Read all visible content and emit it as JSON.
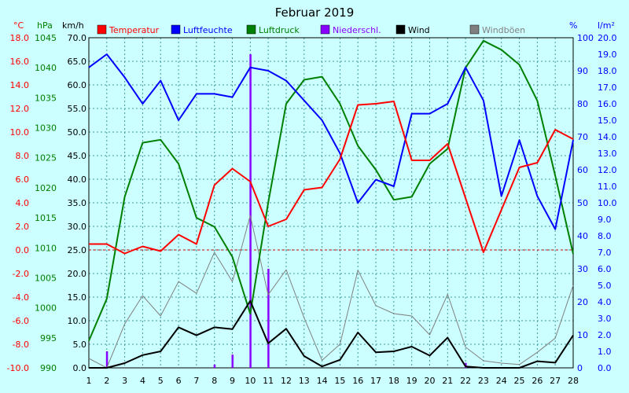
{
  "chart_data": {
    "type": "line",
    "title": "Februar 2019",
    "x": [
      1,
      2,
      3,
      4,
      5,
      6,
      7,
      8,
      9,
      10,
      11,
      12,
      13,
      14,
      15,
      16,
      17,
      18,
      19,
      20,
      21,
      22,
      23,
      24,
      25,
      26,
      27,
      28
    ],
    "axes": {
      "temp": {
        "unit": "°C",
        "min": -10,
        "max": 18,
        "step": 2,
        "color": "#ff0000",
        "ticks": [
          "-10.0",
          "-8.0",
          "-6.0",
          "-4.0",
          "-2.0",
          "0.0",
          "2.0",
          "4.0",
          "6.0",
          "8.0",
          "10.0",
          "12.0",
          "14.0",
          "16.0",
          "18.0"
        ]
      },
      "press": {
        "unit": "hPa",
        "min": 990,
        "max": 1045,
        "step": 5,
        "color": "#008000",
        "ticks": [
          "990",
          "995",
          "1000",
          "1005",
          "1010",
          "1015",
          "1020",
          "1025",
          "1030",
          "1035",
          "1040",
          "1045"
        ]
      },
      "wind": {
        "unit": "km/h",
        "min": 0,
        "max": 70,
        "step": 5,
        "color": "#000000",
        "ticks": [
          "0.0",
          "5.0",
          "10.0",
          "15.0",
          "20.0",
          "25.0",
          "30.0",
          "35.0",
          "40.0",
          "45.0",
          "50.0",
          "55.0",
          "60.0",
          "65.0",
          "70.0"
        ]
      },
      "hum": {
        "unit": "%",
        "min": 0,
        "max": 100,
        "step": 10,
        "color": "#0000ff",
        "ticks": [
          "0",
          "10",
          "20",
          "30",
          "40",
          "50",
          "60",
          "70",
          "80",
          "90",
          "100"
        ]
      },
      "rain": {
        "unit": "l/m²",
        "min": 0,
        "max": 20,
        "step": 1,
        "color": "#0000ff",
        "ticks": [
          "0.0",
          "1.0",
          "2.0",
          "3.0",
          "4.0",
          "5.0",
          "6.0",
          "7.0",
          "8.0",
          "9.0",
          "10.0",
          "11.0",
          "12.0",
          "13.0",
          "14.0",
          "15.0",
          "16.0",
          "17.0",
          "18.0",
          "19.0",
          "20.0"
        ]
      }
    },
    "series": [
      {
        "name": "Temperatur",
        "axis": "temp",
        "color": "#ff0000",
        "kind": "line",
        "values": [
          0.5,
          0.5,
          -0.3,
          0.3,
          -0.1,
          1.3,
          0.5,
          5.5,
          6.9,
          5.8,
          2.0,
          2.6,
          5.1,
          5.3,
          7.7,
          12.3,
          12.4,
          12.6,
          7.6,
          7.6,
          9.0,
          4.4,
          -0.2,
          3.4,
          7.0,
          7.4,
          10.2,
          9.4
        ]
      },
      {
        "name": "Luftfeuchte",
        "axis": "hum",
        "color": "#0000ff",
        "kind": "line",
        "values": [
          91,
          95,
          88,
          80,
          87,
          75,
          83,
          83,
          82,
          91,
          90,
          87,
          81,
          75,
          65,
          50,
          57,
          55,
          77,
          77,
          80,
          91,
          81,
          52,
          69,
          52,
          42,
          69
        ]
      },
      {
        "name": "Luftdruck",
        "axis": "press",
        "color": "#008000",
        "kind": "line",
        "values": [
          994.5,
          1001.5,
          1018.5,
          1027.5,
          1028,
          1024,
          1015,
          1013.5,
          1008.5,
          999,
          1017.5,
          1034,
          1038,
          1038.5,
          1034,
          1027,
          1023,
          1018,
          1018.5,
          1024,
          1026.5,
          1040,
          1044.5,
          1043,
          1040.5,
          1034.5,
          1022,
          1009
        ]
      },
      {
        "name": "Niederschl.",
        "axis": "rain",
        "color": "#8800ff",
        "kind": "bar",
        "values": [
          0,
          1.0,
          0,
          0,
          0,
          0,
          0,
          0.2,
          0.8,
          19.0,
          6.0,
          0,
          0,
          0,
          0,
          0,
          0,
          0,
          0,
          0,
          0,
          0.3,
          0,
          0,
          0,
          0,
          0,
          0
        ]
      },
      {
        "name": "Wind",
        "axis": "wind",
        "color": "#000000",
        "kind": "line",
        "values": [
          0,
          0,
          1.0,
          2.7,
          3.5,
          8.6,
          6.9,
          8.6,
          8.2,
          14.2,
          5.2,
          8.3,
          2.5,
          0.3,
          1.7,
          7.5,
          3.3,
          3.5,
          4.5,
          2.6,
          6.4,
          0.3,
          0,
          0,
          0,
          1.4,
          1.1,
          6.9
        ]
      },
      {
        "name": "Windböen",
        "axis": "wind",
        "color": "#808080",
        "kind": "line",
        "values": [
          2.0,
          0,
          9.3,
          15.3,
          11.0,
          18.3,
          15.8,
          24.5,
          18.3,
          32.3,
          15.5,
          20.8,
          10.6,
          1.6,
          5.0,
          20.7,
          13.2,
          11.5,
          11.0,
          7.0,
          15.6,
          4.4,
          1.5,
          1.0,
          0.7,
          3.3,
          6.3,
          17.5
        ]
      }
    ],
    "grid": true,
    "reference_line": {
      "axis": "temp",
      "value": 0,
      "color": "#cc0000",
      "style": "dashed"
    },
    "legend": "top"
  }
}
